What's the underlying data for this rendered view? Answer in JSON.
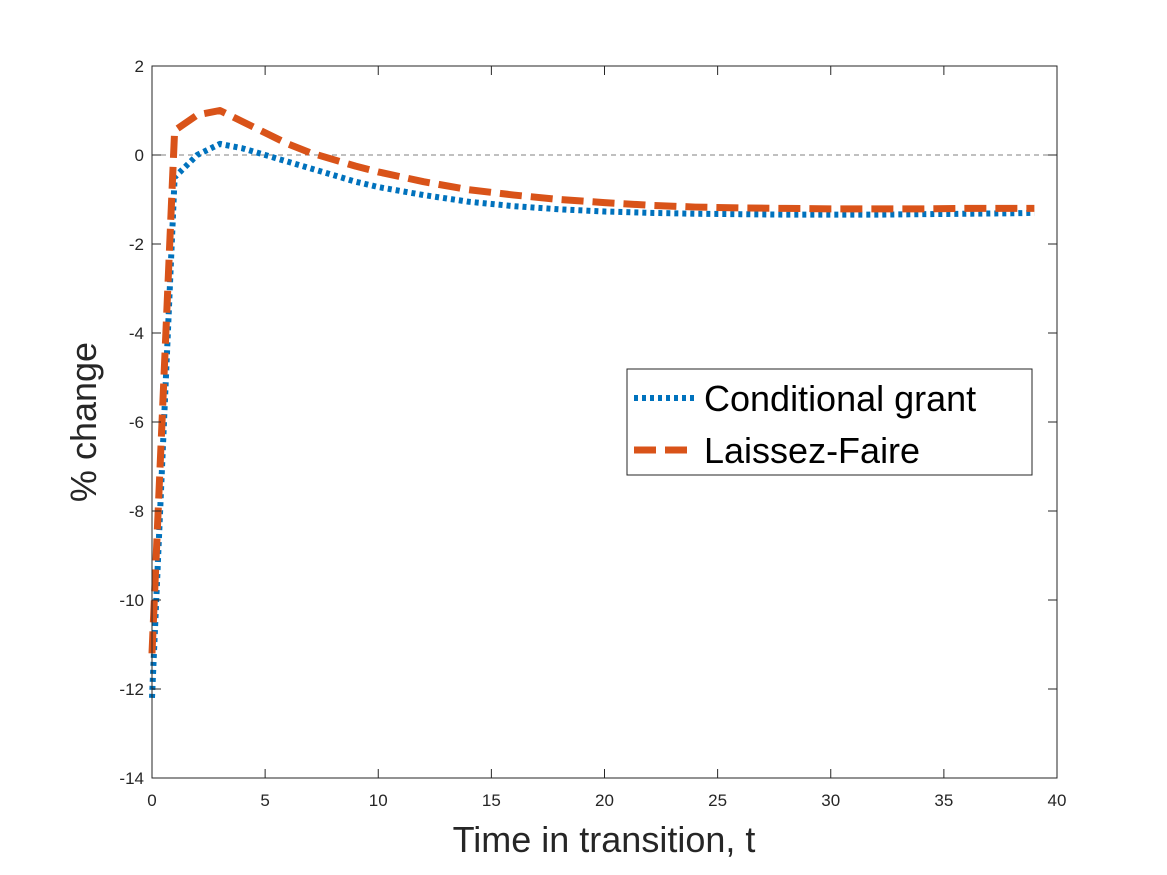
{
  "chart_data": {
    "type": "line",
    "title": "",
    "xlabel": "Time in transition, t",
    "ylabel": "% change",
    "xlim": [
      0,
      40
    ],
    "ylim": [
      -14,
      2
    ],
    "xticks": [
      "0",
      "5",
      "10",
      "15",
      "20",
      "25",
      "30",
      "35",
      "40"
    ],
    "yticks": [
      "2",
      "0",
      "-2",
      "-4",
      "-6",
      "-8",
      "-10",
      "-12",
      "-14"
    ],
    "grid": false,
    "legend_position": "center-right",
    "reference_line": {
      "y": 0,
      "style": "dashed",
      "color": "#808080"
    },
    "series": [
      {
        "name": "Conditional grant",
        "color": "#0072BD",
        "style": "dotted",
        "x": [
          0,
          1,
          2,
          3,
          4,
          5,
          6,
          7,
          8,
          9,
          10,
          12,
          14,
          16,
          18,
          20,
          22,
          24,
          26,
          28,
          30,
          32,
          34,
          36,
          38,
          39
        ],
        "y": [
          -12.2,
          -0.5,
          0.0,
          0.25,
          0.15,
          0.0,
          -0.15,
          -0.3,
          -0.45,
          -0.6,
          -0.72,
          -0.9,
          -1.05,
          -1.15,
          -1.22,
          -1.27,
          -1.3,
          -1.32,
          -1.33,
          -1.34,
          -1.34,
          -1.34,
          -1.33,
          -1.32,
          -1.31,
          -1.3
        ]
      },
      {
        "name": "Laissez-Faire",
        "color": "#D95319",
        "style": "dashed",
        "x": [
          0,
          1,
          2,
          3,
          4,
          5,
          6,
          7,
          8,
          9,
          10,
          12,
          14,
          16,
          18,
          20,
          22,
          24,
          26,
          28,
          30,
          32,
          34,
          36,
          38,
          39
        ],
        "y": [
          -11.2,
          0.55,
          0.9,
          1.0,
          0.75,
          0.5,
          0.25,
          0.05,
          -0.1,
          -0.25,
          -0.38,
          -0.6,
          -0.78,
          -0.9,
          -1.0,
          -1.07,
          -1.13,
          -1.17,
          -1.19,
          -1.2,
          -1.21,
          -1.21,
          -1.21,
          -1.2,
          -1.2,
          -1.2
        ]
      }
    ]
  }
}
